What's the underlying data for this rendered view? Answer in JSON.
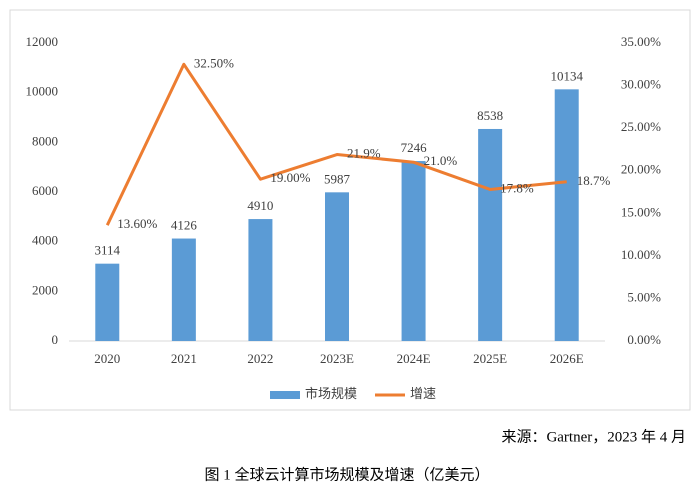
{
  "chart_data": {
    "type": "bar-line",
    "categories": [
      "2020",
      "2021",
      "2022",
      "2023E",
      "2024E",
      "2025E",
      "2026E"
    ],
    "series": [
      {
        "name": "市场规模",
        "type": "bar",
        "color": "#5b9bd5",
        "values": [
          3114,
          4126,
          4910,
          5987,
          7246,
          8538,
          10134
        ]
      },
      {
        "name": "增速",
        "type": "line",
        "axis": "y2",
        "color": "#ed7d31",
        "values": [
          13.6,
          32.5,
          19.0,
          21.9,
          21.0,
          17.8,
          18.7
        ],
        "value_labels": [
          "13.60%",
          "32.50%",
          "19.00%",
          "21.9%",
          "21.0%",
          "17.8%",
          "18.7%"
        ]
      }
    ],
    "ylim": [
      0,
      12000
    ],
    "yticks": [
      0,
      2000,
      4000,
      6000,
      8000,
      10000,
      12000
    ],
    "y2lim": [
      0,
      35
    ],
    "y2ticks": [
      {
        "value": 0,
        "label": "0.00%"
      },
      {
        "value": 5,
        "label": "5.00%"
      },
      {
        "value": 10,
        "label": "10.00%"
      },
      {
        "value": 15,
        "label": "15.00%"
      },
      {
        "value": 20,
        "label": "20.00%"
      },
      {
        "value": 25,
        "label": "25.00%"
      },
      {
        "value": 30,
        "label": "30.00%"
      },
      {
        "value": 35,
        "label": "35.00%"
      }
    ],
    "legend": "bottom",
    "source": "来源：Gartner，2023 年 4 月",
    "caption": "图 1 全球云计算市场规模及增速（亿美元）"
  }
}
